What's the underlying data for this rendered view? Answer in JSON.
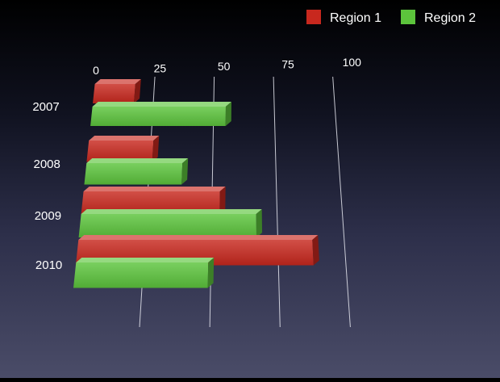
{
  "chart_data": {
    "type": "bar",
    "orientation": "horizontal",
    "style": "3d",
    "categories": [
      "2007",
      "2008",
      "2009",
      "2010"
    ],
    "series": [
      {
        "name": "Region 1",
        "color": "#c8281e",
        "values": [
          17,
          26,
          53,
          88
        ]
      },
      {
        "name": "Region 2",
        "color": "#5cc43c",
        "values": [
          55,
          38,
          67,
          49
        ]
      }
    ],
    "xlim": [
      0,
      100
    ],
    "xticks": [
      "0",
      "25",
      "50",
      "75",
      "100"
    ],
    "grid": true,
    "legend": "top-right",
    "title": "",
    "xlabel": "",
    "ylabel": ""
  }
}
